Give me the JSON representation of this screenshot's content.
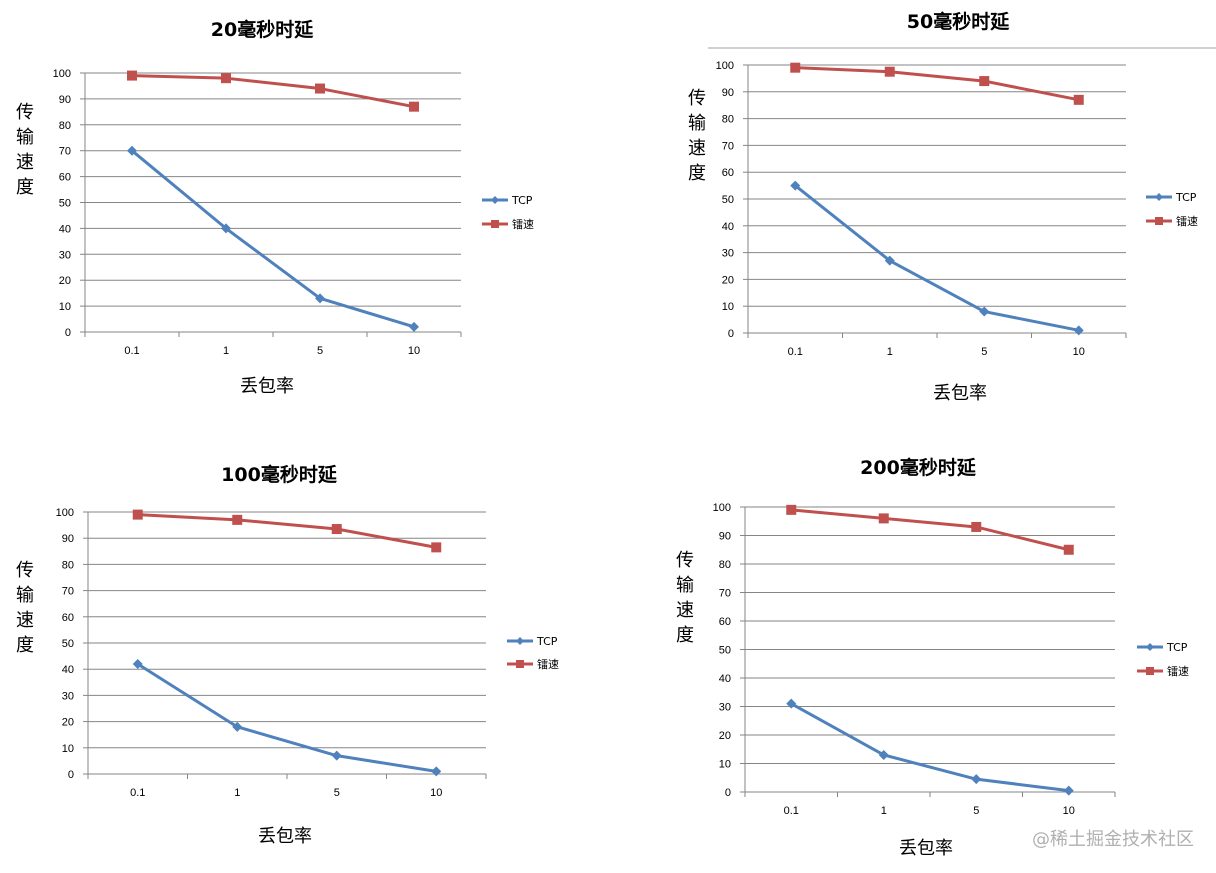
{
  "watermark": "@稀土掘金技术社区",
  "chart_data": [
    {
      "type": "line",
      "title": "20毫秒时延",
      "xlabel": "丢包率",
      "ylabel": "传输速度",
      "categories": [
        "0.1",
        "1",
        "5",
        "10"
      ],
      "ylim": [
        0,
        100
      ],
      "yticks": [
        0,
        10,
        20,
        30,
        40,
        50,
        60,
        70,
        80,
        90,
        100
      ],
      "grid": true,
      "legend_position": "right",
      "series": [
        {
          "name": "TCP",
          "values": [
            70,
            40,
            13,
            2
          ],
          "color": "#4f81bd",
          "marker": "diamond"
        },
        {
          "name": "镭速",
          "values": [
            99,
            98,
            94,
            87
          ],
          "color": "#c0504d",
          "marker": "square"
        }
      ]
    },
    {
      "type": "line",
      "title": "50毫秒时延",
      "xlabel": "丢包率",
      "ylabel": "传输速度",
      "categories": [
        "0.1",
        "1",
        "5",
        "10"
      ],
      "ylim": [
        0,
        100
      ],
      "yticks": [
        0,
        10,
        20,
        30,
        40,
        50,
        60,
        70,
        80,
        90,
        100
      ],
      "grid": true,
      "legend_position": "right",
      "series": [
        {
          "name": "TCP",
          "values": [
            55,
            27,
            8,
            1
          ],
          "color": "#4f81bd",
          "marker": "diamond"
        },
        {
          "name": "镭速",
          "values": [
            99,
            97.5,
            94,
            87
          ],
          "color": "#c0504d",
          "marker": "square"
        }
      ]
    },
    {
      "type": "line",
      "title": "100毫秒时延",
      "xlabel": "丢包率",
      "ylabel": "传输速度",
      "categories": [
        "0.1",
        "1",
        "5",
        "10"
      ],
      "ylim": [
        0,
        100
      ],
      "yticks": [
        0,
        10,
        20,
        30,
        40,
        50,
        60,
        70,
        80,
        90,
        100
      ],
      "grid": true,
      "legend_position": "right",
      "series": [
        {
          "name": "TCP",
          "values": [
            42,
            18,
            7,
            1
          ],
          "color": "#4f81bd",
          "marker": "diamond"
        },
        {
          "name": "镭速",
          "values": [
            99,
            97,
            93.5,
            86.5
          ],
          "color": "#c0504d",
          "marker": "square"
        }
      ]
    },
    {
      "type": "line",
      "title": "200毫秒时延",
      "xlabel": "丢包率",
      "ylabel": "传输速度",
      "categories": [
        "0.1",
        "1",
        "5",
        "10"
      ],
      "ylim": [
        0,
        100
      ],
      "yticks": [
        0,
        10,
        20,
        30,
        40,
        50,
        60,
        70,
        80,
        90,
        100
      ],
      "grid": true,
      "legend_position": "right",
      "series": [
        {
          "name": "TCP",
          "values": [
            31,
            13,
            4.5,
            0.5
          ],
          "color": "#4f81bd",
          "marker": "diamond"
        },
        {
          "name": "镭速",
          "values": [
            99,
            96,
            93,
            85
          ],
          "color": "#c0504d",
          "marker": "square"
        }
      ]
    }
  ]
}
